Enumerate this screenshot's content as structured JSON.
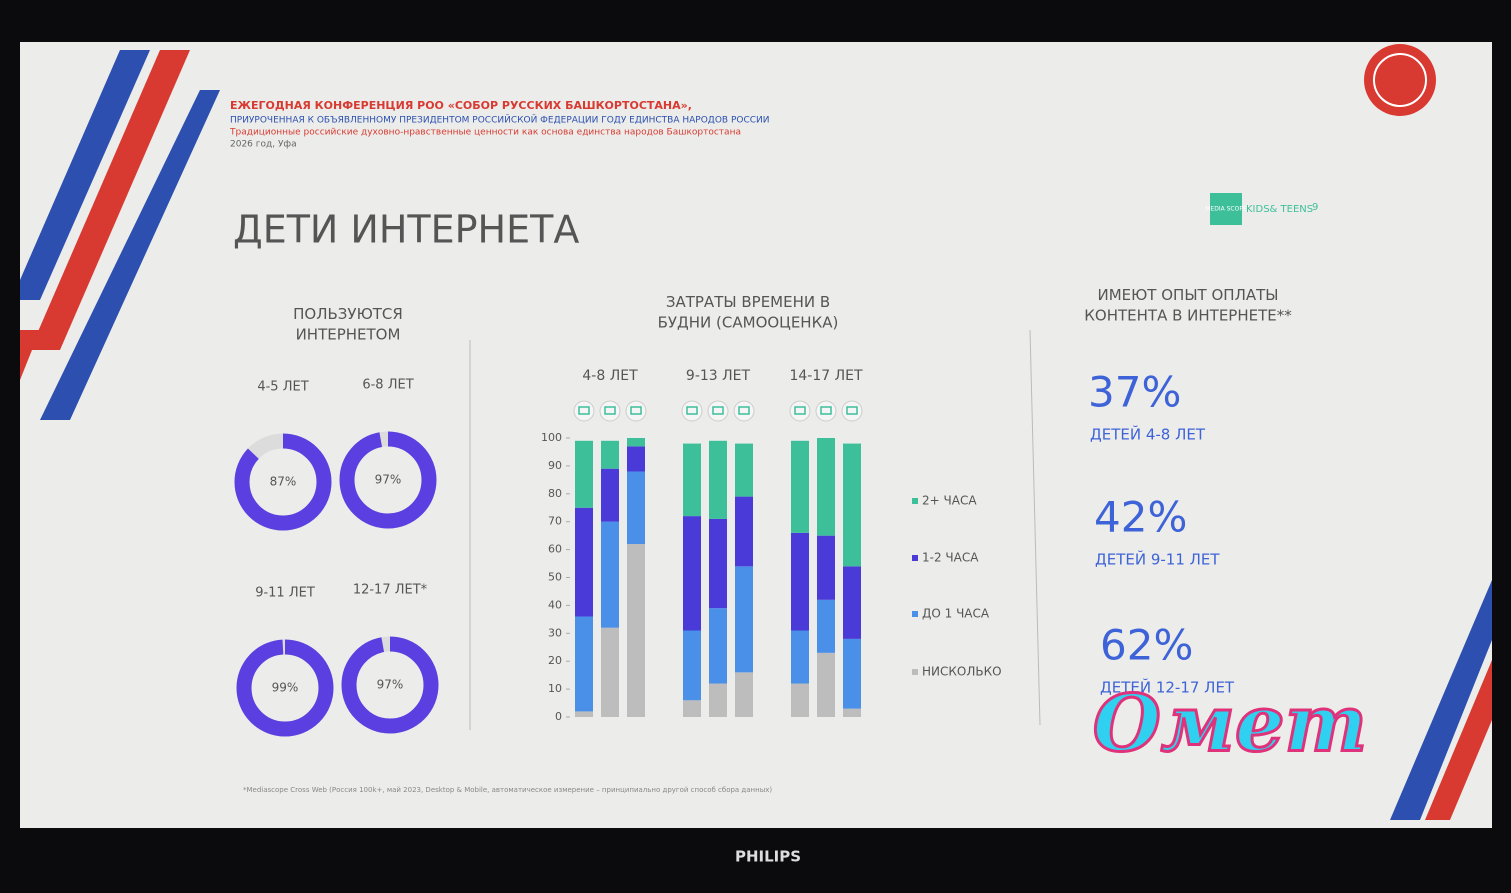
{
  "header": {
    "line1": "ЕЖЕГОДНАЯ КОНФЕРЕНЦИЯ РОО «СОБОР РУССКИХ БАШКОРТОСТАНА»,",
    "line2": "ПРИУРОЧЕННАЯ К ОБЪЯВЛЕННОМУ ПРЕЗИДЕНТОМ РОССИЙСКОЙ ФЕДЕРАЦИИ ГОДУ ЕДИНСТВА НАРОДОВ РОССИИ",
    "line3": "Традиционные российские духовно-нравственные ценности как основа единства народов Башкортостана",
    "line4": "2026 год, Уфа"
  },
  "title": "ДЕТИ ИНТЕРНЕТА",
  "logo": {
    "mark": "MEDIA SCOPE",
    "text": "KIDS& TEENS",
    "page": "9"
  },
  "footnote": "*Mediascope Cross Web (Россия 100k+, май 2023, Desktop & Mobile, автоматическое измерение – принципиально другой способ сбора данных)",
  "monitor_brand": "PHILIPS",
  "watermark": "Омет",
  "chart_data": [
    {
      "type": "donut",
      "title": "ПОЛЬЗУЮТСЯ ИНТЕРНЕТОМ",
      "categories": [
        "4-5 ЛЕТ",
        "6-8 ЛЕТ",
        "9-11 ЛЕТ",
        "12-17 ЛЕТ*"
      ],
      "values": [
        87,
        97,
        99,
        97
      ],
      "value_labels": [
        "87%",
        "97%",
        "99%",
        "97%"
      ],
      "color": "#5b3fe0",
      "track_color": "#dcdcdc"
    },
    {
      "type": "stacked-bar",
      "title": "ЗАТРАТЫ ВРЕМЕНИ В БУДНИ (САМООЦЕНКА)",
      "groups": [
        "4-8 ЛЕТ",
        "9-13 ЛЕТ",
        "14-17 ЛЕТ"
      ],
      "categories": [
        null,
        null,
        null,
        null,
        null,
        null,
        null,
        null,
        null
      ],
      "series": [
        {
          "name": "НИСКОЛЬКО",
          "color": "#bdbdbd",
          "values": [
            2,
            32,
            62,
            6,
            12,
            16,
            12,
            23,
            3
          ]
        },
        {
          "name": "ДО 1 ЧАСА",
          "color": "#4a90e8",
          "values": [
            34,
            38,
            26,
            25,
            27,
            38,
            19,
            19,
            25
          ]
        },
        {
          "name": "1-2 ЧАСА",
          "color": "#4a3ad8",
          "values": [
            39,
            19,
            9,
            41,
            32,
            25,
            35,
            23,
            26
          ]
        },
        {
          "name": "2+ ЧАСА",
          "color": "#3dbf9a",
          "values": [
            24,
            10,
            3,
            26,
            28,
            19,
            33,
            35,
            44
          ]
        }
      ],
      "ylim": [
        0,
        100
      ],
      "yticks": [
        0,
        10,
        20,
        30,
        40,
        50,
        60,
        70,
        80,
        90,
        100
      ]
    },
    {
      "type": "kpi",
      "title": "ИМЕЮТ ОПЫТ ОПЛАТЫ КОНТЕНТА В ИНТЕРНЕТЕ**",
      "categories": [
        "ДЕТЕЙ 4-8 ЛЕТ",
        "ДЕТЕЙ 9-11 ЛЕТ",
        "ДЕТЕЙ 12-17 ЛЕТ"
      ],
      "values": [
        37,
        42,
        62
      ],
      "value_labels": [
        "37%",
        "42%",
        "62%"
      ],
      "color": "#3e63d8"
    }
  ]
}
